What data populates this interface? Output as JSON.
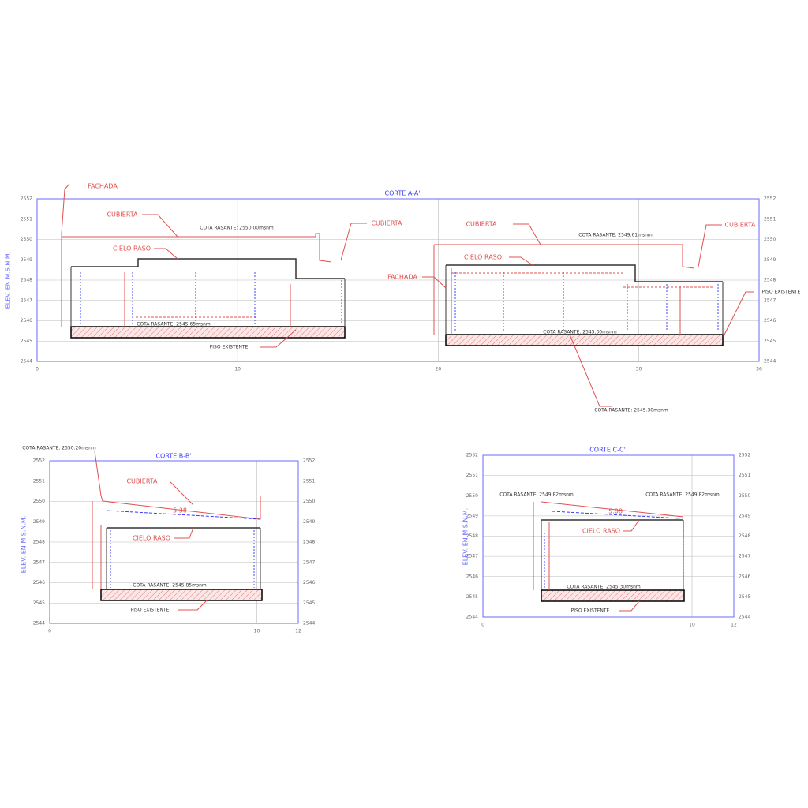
{
  "sections": [
    {
      "title": "CORTE A-A'",
      "y_axis_label": "ELEV. EN M.S.N.M.",
      "yticks": [
        2552,
        2551,
        2550,
        2549,
        2548,
        2547,
        2546,
        2545,
        2544
      ],
      "xticks": [
        0,
        10,
        20,
        30,
        36
      ],
      "labels": [
        "FACHADA",
        "CUBIERTA",
        "COTA RASANTE: 2550.00msnm",
        "CIELO RASO",
        "COTA RASANTE: 2545.65msnm",
        "PISO EXISTENTE",
        "CUBIERTA",
        "CUBIERTA",
        "COTA RASANTE: 2549.61msnm",
        "CIELO RASO",
        "FACHADA",
        "CUBIERTA",
        "PISO EXISTENTE",
        "COTA RASANTE: 2545.30msnm",
        "COTA RASANTE: 2545.30msnm"
      ]
    },
    {
      "title": "CORTE B-B'",
      "y_axis_label": "ELEV. EN M.S.N.M.",
      "yticks": [
        2552,
        2551,
        2550,
        2549,
        2548,
        2547,
        2546,
        2545,
        2544
      ],
      "xticks": [
        0,
        10,
        12
      ],
      "labels": [
        "COTA RASANTE: 2550.20msnm",
        "CUBIERTA",
        "5.38",
        "CIELO RASO",
        "COTA RASANTE: 2545.85msnm",
        "PISO EXISTENTE"
      ]
    },
    {
      "title": "CORTE C-C'",
      "y_axis_label": "ELEV. EN M.S.N.M.",
      "yticks": [
        2552,
        2551,
        2550,
        2549,
        2548,
        2547,
        2546,
        2545,
        2544
      ],
      "xticks": [
        0,
        10,
        12
      ],
      "labels": [
        "COTA RASANTE: 2549.82msnm",
        "COTA RASANTE: 2549.82msnm",
        "5.08",
        "CIELO RASO",
        "COTA RASANTE: 2545.30msnm",
        "PISO EXISTENTE"
      ]
    }
  ]
}
